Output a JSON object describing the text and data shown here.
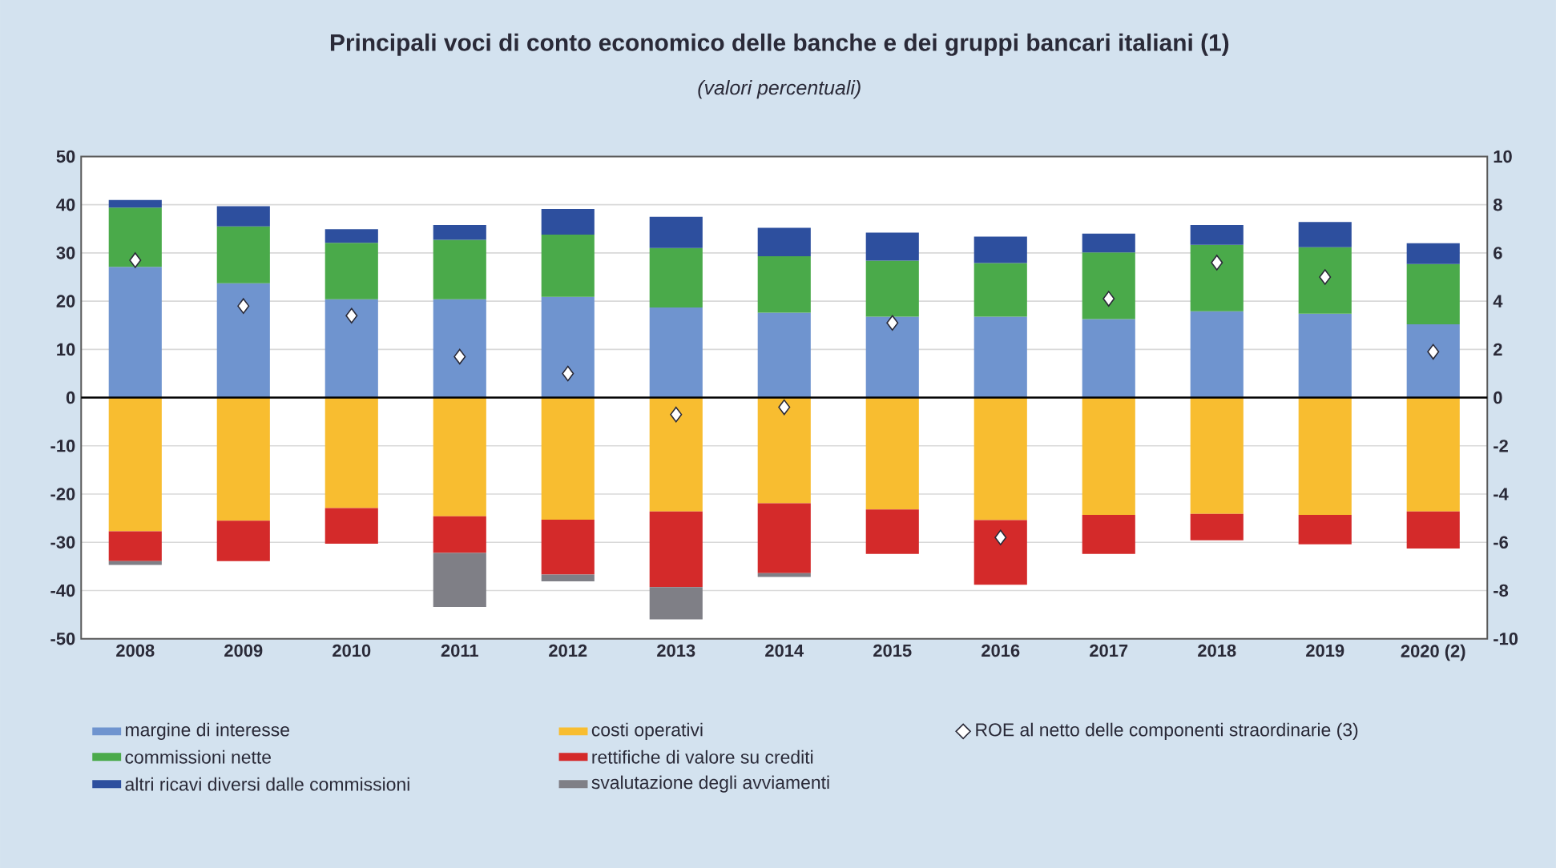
{
  "chart_data": {
    "type": "bar",
    "stacked": true,
    "title": "Principali voci di conto economico delle banche e dei gruppi bancari italiani (1)",
    "subtitle": "(valori percentuali)",
    "categories": [
      "2008",
      "2009",
      "2010",
      "2011",
      "2012",
      "2013",
      "2014",
      "2015",
      "2016",
      "2017",
      "2018",
      "2019",
      "2020 (2)"
    ],
    "series": [
      {
        "name": "margine di interesse",
        "color": "#6f94cf",
        "values": [
          27.1,
          23.7,
          20.4,
          20.4,
          20.9,
          18.7,
          17.6,
          16.8,
          16.8,
          16.3,
          17.9,
          17.4,
          15.2
        ]
      },
      {
        "name": "commissioni nette",
        "color": "#4aaa4a",
        "values": [
          12.3,
          11.8,
          11.7,
          12.3,
          12.9,
          12.3,
          11.7,
          11.6,
          11.1,
          13.8,
          13.8,
          13.8,
          12.5
        ]
      },
      {
        "name": "altri ricavi diversi dalle commissioni",
        "color": "#2d4f9e",
        "values": [
          1.6,
          4.2,
          2.8,
          3.1,
          5.3,
          6.5,
          5.9,
          5.8,
          5.5,
          3.9,
          4.1,
          5.2,
          4.3
        ]
      },
      {
        "name": "costi operativi",
        "color": "#f8bd30",
        "values": [
          -27.7,
          -25.5,
          -22.9,
          -24.6,
          -25.3,
          -23.6,
          -21.9,
          -23.2,
          -25.4,
          -24.3,
          -24.1,
          -24.3,
          -23.6
        ]
      },
      {
        "name": "rettifiche di valore su crediti",
        "color": "#d42a2a",
        "values": [
          -6.2,
          -8.4,
          -7.4,
          -7.6,
          -11.4,
          -15.7,
          -14.5,
          -9.2,
          -13.4,
          -8.1,
          -5.5,
          -6.1,
          -7.7
        ]
      },
      {
        "name": "svalutazione degli avviamenti",
        "color": "#7f7f86",
        "values": [
          -0.8,
          null,
          null,
          -11.2,
          -1.4,
          -6.7,
          -0.8,
          null,
          null,
          null,
          null,
          null,
          null
        ]
      },
      {
        "name": "ROE al netto delle componenti straordinarie (3)",
        "type": "scatter",
        "axis": "y2",
        "marker": "diamond",
        "color": "#ffffff",
        "values": [
          5.7,
          3.8,
          3.4,
          1.7,
          1.0,
          -0.7,
          -0.4,
          3.1,
          -5.8,
          4.1,
          5.6,
          5.0,
          1.9
        ]
      }
    ],
    "ylim": [
      -50,
      50
    ],
    "yticks": [
      -50,
      -40,
      -30,
      -20,
      -10,
      0,
      10,
      20,
      30,
      40,
      50
    ],
    "y2lim": [
      -10,
      10
    ],
    "y2ticks": [
      -10,
      -8,
      -6,
      -4,
      -2,
      0,
      2,
      4,
      6,
      8,
      10
    ],
    "grid": "y",
    "legend": "bottom"
  }
}
